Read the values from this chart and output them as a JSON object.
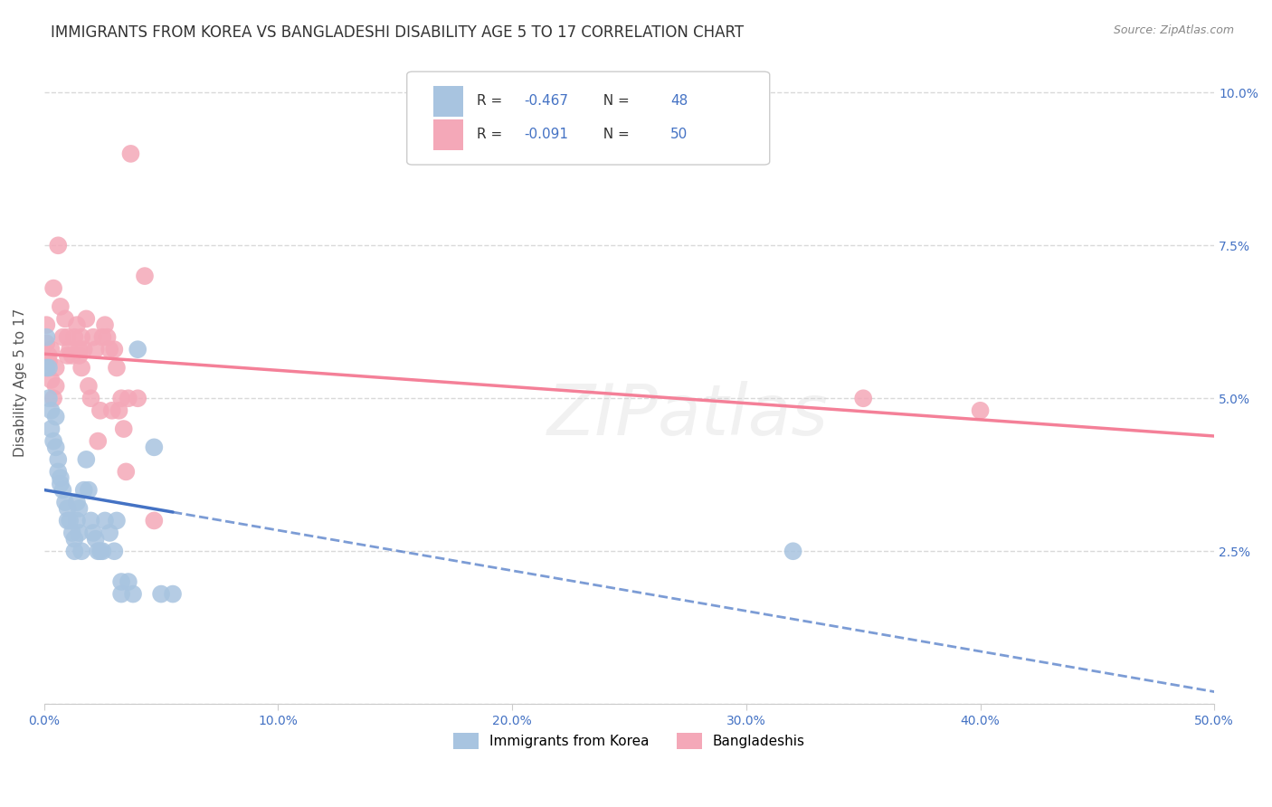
{
  "title": "IMMIGRANTS FROM KOREA VS BANGLADESHI DISABILITY AGE 5 TO 17 CORRELATION CHART",
  "source": "Source: ZipAtlas.com",
  "ylabel": "Disability Age 5 to 17",
  "xlim": [
    0.0,
    0.5
  ],
  "ylim": [
    0.0,
    0.105
  ],
  "korea_R": "-0.467",
  "korea_N": "48",
  "bangla_R": "-0.091",
  "bangla_N": "50",
  "korea_color": "#a8c4e0",
  "bangla_color": "#f4a8b8",
  "korea_line_color": "#4472c4",
  "bangla_line_color": "#f48098",
  "legend_labels": [
    "Immigrants from Korea",
    "Bangladeshis"
  ],
  "korea_x": [
    0.001,
    0.001,
    0.002,
    0.002,
    0.003,
    0.003,
    0.004,
    0.005,
    0.005,
    0.006,
    0.006,
    0.007,
    0.007,
    0.008,
    0.009,
    0.01,
    0.01,
    0.011,
    0.012,
    0.013,
    0.013,
    0.014,
    0.014,
    0.015,
    0.015,
    0.016,
    0.017,
    0.018,
    0.019,
    0.02,
    0.021,
    0.022,
    0.023,
    0.024,
    0.025,
    0.026,
    0.028,
    0.03,
    0.031,
    0.033,
    0.033,
    0.036,
    0.038,
    0.04,
    0.047,
    0.05,
    0.055,
    0.32
  ],
  "korea_y": [
    0.06,
    0.055,
    0.055,
    0.05,
    0.048,
    0.045,
    0.043,
    0.047,
    0.042,
    0.04,
    0.038,
    0.037,
    0.036,
    0.035,
    0.033,
    0.032,
    0.03,
    0.03,
    0.028,
    0.027,
    0.025,
    0.033,
    0.03,
    0.032,
    0.028,
    0.025,
    0.035,
    0.04,
    0.035,
    0.03,
    0.028,
    0.027,
    0.025,
    0.025,
    0.025,
    0.03,
    0.028,
    0.025,
    0.03,
    0.02,
    0.018,
    0.02,
    0.018,
    0.058,
    0.042,
    0.018,
    0.018,
    0.025
  ],
  "bangla_x": [
    0.001,
    0.001,
    0.002,
    0.002,
    0.003,
    0.003,
    0.004,
    0.004,
    0.005,
    0.005,
    0.006,
    0.007,
    0.008,
    0.009,
    0.01,
    0.01,
    0.011,
    0.012,
    0.013,
    0.014,
    0.015,
    0.015,
    0.016,
    0.016,
    0.017,
    0.018,
    0.019,
    0.02,
    0.021,
    0.022,
    0.023,
    0.024,
    0.025,
    0.026,
    0.027,
    0.028,
    0.029,
    0.03,
    0.031,
    0.032,
    0.033,
    0.034,
    0.035,
    0.036,
    0.037,
    0.04,
    0.043,
    0.047,
    0.35,
    0.4
  ],
  "bangla_y": [
    0.062,
    0.059,
    0.057,
    0.056,
    0.058,
    0.053,
    0.05,
    0.068,
    0.052,
    0.055,
    0.075,
    0.065,
    0.06,
    0.063,
    0.06,
    0.057,
    0.058,
    0.057,
    0.06,
    0.062,
    0.058,
    0.057,
    0.06,
    0.055,
    0.058,
    0.063,
    0.052,
    0.05,
    0.06,
    0.058,
    0.043,
    0.048,
    0.06,
    0.062,
    0.06,
    0.058,
    0.048,
    0.058,
    0.055,
    0.048,
    0.05,
    0.045,
    0.038,
    0.05,
    0.09,
    0.05,
    0.07,
    0.03,
    0.05,
    0.048
  ],
  "background_color": "#ffffff",
  "grid_color": "#d0d0d0",
  "watermark": "ZIPatlas",
  "title_fontsize": 12,
  "axis_label_fontsize": 11,
  "tick_fontsize": 10
}
